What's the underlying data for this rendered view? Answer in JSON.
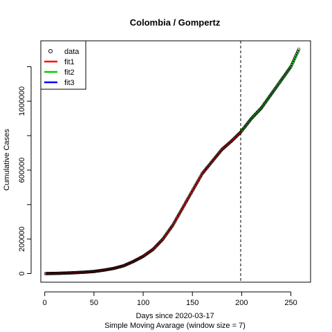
{
  "chart_data": {
    "type": "line",
    "title": "Colombia / Gompertz",
    "xlabel": "Days since 2020-03-17",
    "xlabel2": "Simple Moving Avarage (window size = 7)",
    "ylabel": "Cumulative Cases",
    "xlim": [
      -4,
      270
    ],
    "ylim": [
      -50000,
      1350000
    ],
    "x_ticks": [
      0,
      50,
      100,
      150,
      200,
      250
    ],
    "y_ticks": [
      0,
      200000,
      600000,
      1000000
    ],
    "vline_x": 199,
    "legend": {
      "position": "top-left",
      "entries": [
        {
          "label": "data",
          "kind": "point",
          "color": "#000000"
        },
        {
          "label": "fit1",
          "kind": "line",
          "color": "#ff0000"
        },
        {
          "label": "fit2",
          "kind": "line",
          "color": "#00cd00"
        },
        {
          "label": "fit3",
          "kind": "line",
          "color": "#0000ff"
        }
      ]
    },
    "data_series": {
      "x": [
        1,
        10,
        20,
        30,
        40,
        50,
        60,
        70,
        80,
        90,
        100,
        110,
        120,
        130,
        140,
        150,
        160,
        170,
        180,
        190,
        199,
        210,
        220,
        230,
        240,
        250,
        258
      ],
      "y": [
        0,
        1000,
        2500,
        5000,
        8000,
        12000,
        20000,
        30000,
        45000,
        70000,
        100000,
        140000,
        200000,
        280000,
        380000,
        480000,
        580000,
        650000,
        720000,
        770000,
        820000,
        900000,
        960000,
        1040000,
        1120000,
        1200000,
        1300000
      ]
    },
    "series": [
      {
        "name": "fit1",
        "color": "#ff0000",
        "x": [
          1,
          10,
          20,
          30,
          40,
          50,
          60,
          70,
          80,
          90,
          100,
          110,
          120,
          130,
          140,
          150,
          160,
          170,
          180,
          190,
          199
        ],
        "y": [
          0,
          1000,
          2500,
          5000,
          8000,
          12000,
          20000,
          30000,
          45000,
          70000,
          100000,
          140000,
          200000,
          280000,
          380000,
          480000,
          580000,
          650000,
          720000,
          770000,
          820000
        ]
      },
      {
        "name": "fit2",
        "color": "#00cd00",
        "x": [
          199,
          210,
          220,
          230,
          240,
          250,
          258
        ],
        "y": [
          820000,
          900000,
          960000,
          1040000,
          1120000,
          1200000,
          1300000
        ]
      }
    ]
  }
}
